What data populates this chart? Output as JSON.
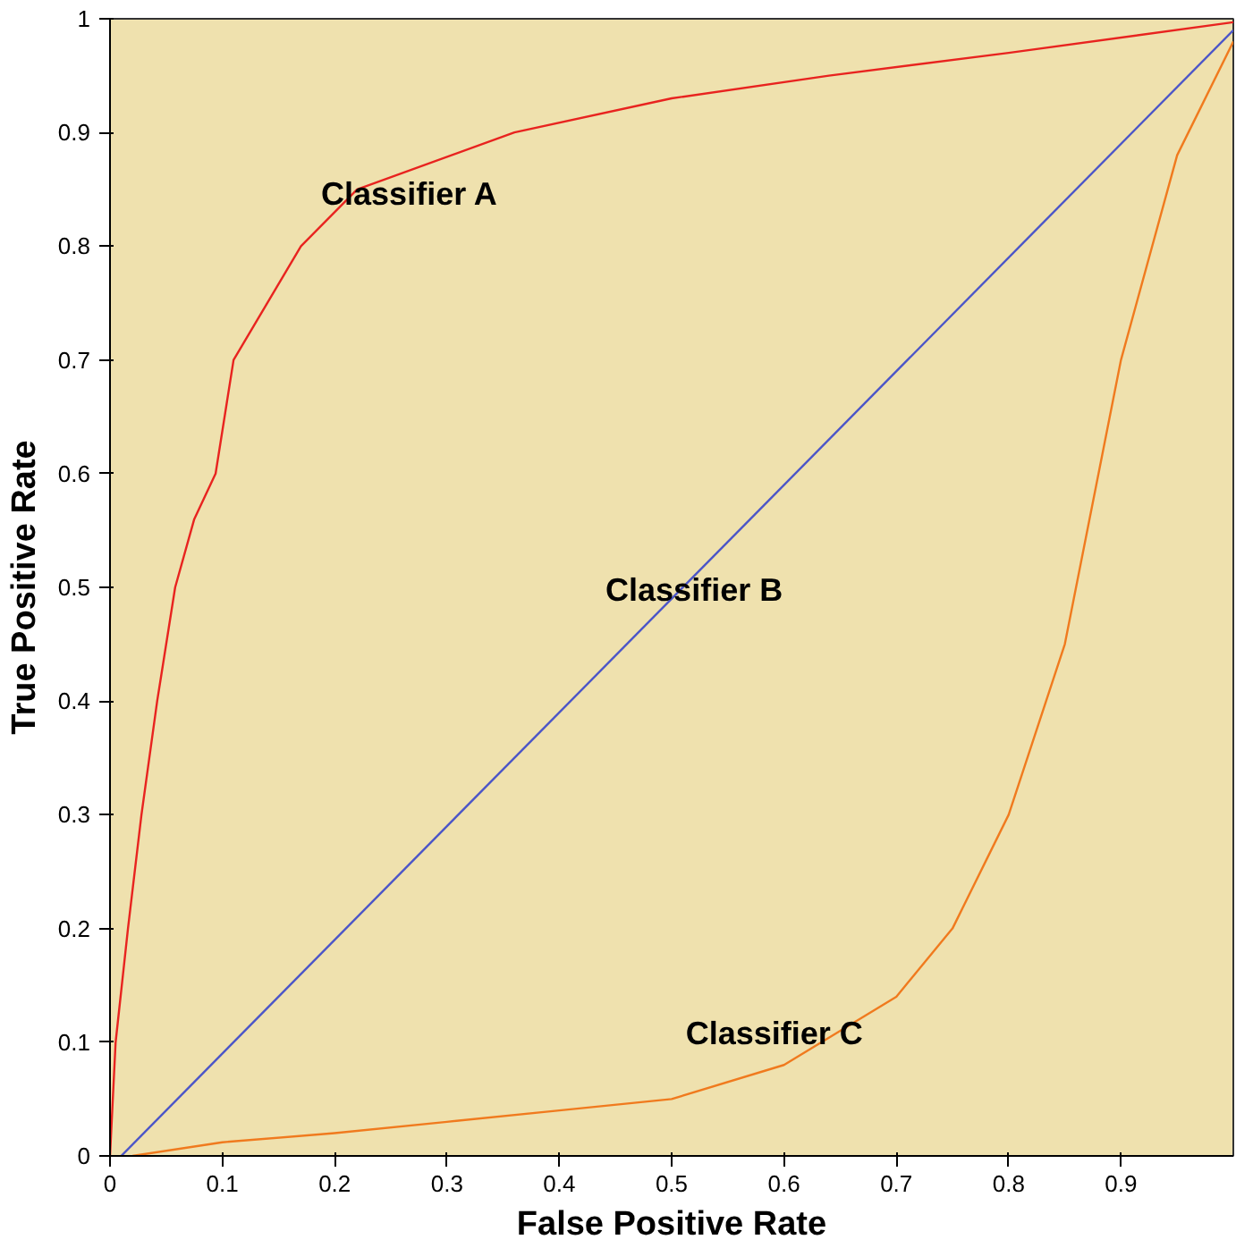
{
  "chart_data": {
    "type": "line",
    "xlabel": "False Positive Rate",
    "ylabel": "True Positive Rate",
    "xlim": [
      0,
      1
    ],
    "ylim": [
      0,
      1
    ],
    "xticks": [
      0,
      0.1,
      0.2,
      0.3,
      0.4,
      0.5,
      0.6,
      0.7,
      0.8,
      0.9
    ],
    "yticks": [
      0,
      0.1,
      0.2,
      0.3,
      0.4,
      0.5,
      0.6,
      0.7,
      0.8,
      0.9,
      1
    ],
    "grid": false,
    "legend": false,
    "series": [
      {
        "name": "Classifier A",
        "color": "#e8231f",
        "x": [
          0,
          0.005,
          0.016,
          0.028,
          0.042,
          0.058,
          0.075,
          0.094,
          0.11,
          0.17,
          0.22,
          0.36,
          0.5,
          0.64,
          0.8,
          1
        ],
        "values": [
          0,
          0.1,
          0.2,
          0.3,
          0.4,
          0.5,
          0.56,
          0.6,
          0.7,
          0.8,
          0.85,
          0.9,
          0.93,
          0.95,
          0.97,
          0.997
        ]
      },
      {
        "name": "Classifier B",
        "color": "#4b55c8",
        "x": [
          0.01,
          1
        ],
        "values": [
          0,
          0.99
        ]
      },
      {
        "name": "Classifier C",
        "color": "#f07a1e",
        "x": [
          0.02,
          0.1,
          0.2,
          0.3,
          0.4,
          0.5,
          0.6,
          0.7,
          0.75,
          0.8,
          0.85,
          0.9,
          0.95,
          1
        ],
        "values": [
          0,
          0.012,
          0.02,
          0.03,
          0.04,
          0.05,
          0.08,
          0.14,
          0.2,
          0.3,
          0.45,
          0.7,
          0.88,
          0.98
        ]
      }
    ]
  }
}
